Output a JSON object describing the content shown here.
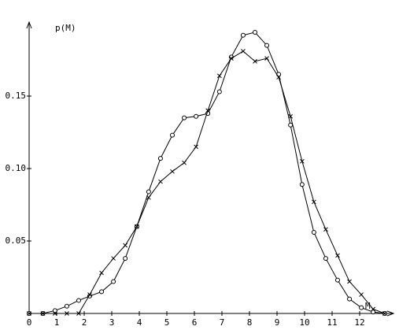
{
  "chart_data": {
    "type": "line",
    "y_label": "p(M)",
    "x_label": "M",
    "xlim": [
      0,
      13.2
    ],
    "ylim": [
      0,
      0.2
    ],
    "xticks": [
      0,
      1,
      2,
      3,
      4,
      5,
      6,
      7,
      8,
      9,
      10,
      11,
      12
    ],
    "yticks": [
      0.05,
      {
        "value": 0.1,
        "label": "0.10"
      },
      0.15
    ],
    "grid": false,
    "x": [
      0,
      0.5,
      0.94,
      1.37,
      1.8,
      2.2,
      2.63,
      3.06,
      3.49,
      3.91,
      4.34,
      4.77,
      5.2,
      5.63,
      6.06,
      6.49,
      6.91,
      7.34,
      7.77,
      8.2,
      8.63,
      9.06,
      9.49,
      9.91,
      10.34,
      10.77,
      11.2,
      11.63,
      12.06,
      12.49,
      12.91
    ],
    "series": [
      {
        "color": "#000000",
        "marker": "circle",
        "values": [
          0,
          0,
          0.002,
          0.005,
          0.009,
          0.012,
          0.015,
          0.022,
          0.038,
          0.06,
          0.084,
          0.107,
          0.123,
          0.135,
          0.136,
          0.138,
          0.153,
          0.177,
          0.192,
          0.194,
          0.185,
          0.165,
          0.13,
          0.089,
          0.056,
          0.038,
          0.023,
          0.01,
          0.004,
          0.001,
          0
        ]
      },
      {
        "color": "#000000",
        "marker": "x",
        "values": [
          0,
          0,
          0,
          0,
          0,
          0.013,
          0.028,
          0.038,
          0.047,
          0.06,
          0.08,
          0.091,
          0.098,
          0.104,
          0.115,
          0.14,
          0.164,
          0.176,
          0.181,
          0.174,
          0.176,
          0.163,
          0.136,
          0.105,
          0.077,
          0.058,
          0.04,
          0.022,
          0.013,
          0.003,
          0
        ]
      }
    ]
  }
}
